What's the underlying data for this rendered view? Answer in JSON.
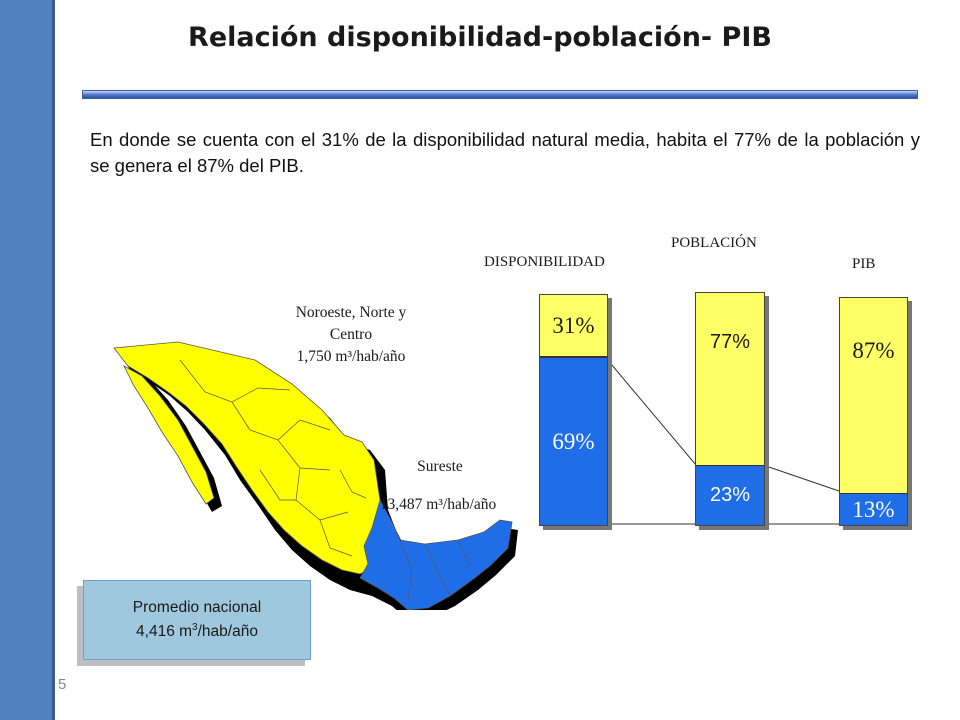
{
  "slide": {
    "title": "Relación disponibilidad-población- PIB",
    "intro": "En donde se cuenta con el 31% de la disponibilidad natural media, habita el 77% de la población y se genera el 87% del PIB.",
    "page_number": "5"
  },
  "map": {
    "regions": [
      {
        "line1": "Noroeste, Norte y",
        "line2": "Centro",
        "value": "1,750 m³/hab/año",
        "color": "#ffff00"
      },
      {
        "line1": "Sureste",
        "value": "13,487 m³/hab/año",
        "color": "#1f6ee8"
      }
    ],
    "average": {
      "line1": "Promedio nacional",
      "value": "4,416 m",
      "sup": "3",
      "unit": "/hab/año"
    }
  },
  "chart_data": {
    "type": "bar",
    "stacked": true,
    "categories": [
      "DISPONIBILIDAD",
      "POBLACIÓN",
      "PIB"
    ],
    "series": [
      {
        "values": [
          69,
          23,
          13
        ],
        "labels": [
          "69%",
          "23%",
          "13%"
        ],
        "color": "#1f6ee8"
      },
      {
        "values": [
          31,
          77,
          87
        ],
        "labels": [
          "31%",
          "77%",
          "87%"
        ],
        "color": "#ffff66"
      }
    ]
  }
}
